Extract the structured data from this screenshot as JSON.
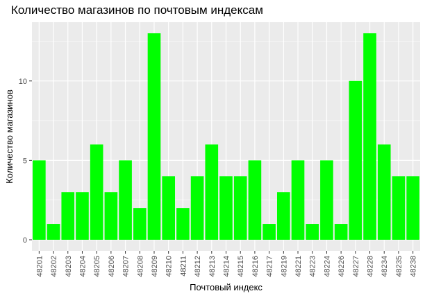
{
  "chart_data": {
    "type": "bar",
    "title": "Количество магазинов по почтовым индексам",
    "xlabel": "Почтовый индекс",
    "ylabel": "Количество магазинов",
    "categories": [
      "48201",
      "48202",
      "48203",
      "48204",
      "48205",
      "48206",
      "48207",
      "48208",
      "48209",
      "48210",
      "48211",
      "48212",
      "48213",
      "48214",
      "48215",
      "48216",
      "48217",
      "48219",
      "48221",
      "48223",
      "48224",
      "48226",
      "48227",
      "48228",
      "48234",
      "48235",
      "48238"
    ],
    "values": [
      5,
      1,
      3,
      3,
      6,
      3,
      5,
      2,
      13,
      4,
      2,
      4,
      6,
      4,
      4,
      5,
      1,
      3,
      5,
      1,
      5,
      1,
      10,
      13,
      6,
      4,
      4
    ],
    "ylim": [
      -0.7,
      13.7
    ],
    "yticks": [
      0,
      5,
      10
    ],
    "grid": true,
    "bar_color": "#00ff00",
    "panel_color": "#ebebeb",
    "grid_color": "#ffffff"
  }
}
